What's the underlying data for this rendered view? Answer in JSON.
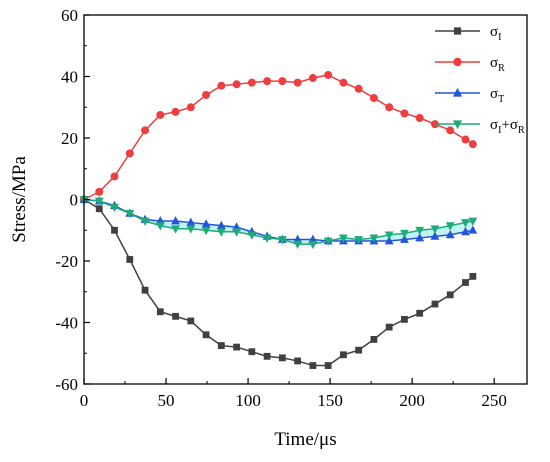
{
  "chart_data": {
    "type": "line",
    "xlabel": "Time/μs",
    "ylabel": "Stress/MPa",
    "xlim": [
      0,
      270
    ],
    "ylim": [
      -60,
      60
    ],
    "xticks": [
      0,
      50,
      100,
      150,
      200,
      250
    ],
    "yticks": [
      -60,
      -40,
      -20,
      0,
      20,
      40,
      60
    ],
    "grid": false,
    "legend_position": "top-right",
    "x": [
      0,
      9.3,
      18.6,
      27.9,
      37.2,
      46.5,
      55.8,
      65.1,
      74.4,
      83.7,
      93,
      102.3,
      111.6,
      120.9,
      130.2,
      139.5,
      148.8,
      158.1,
      167.4,
      176.7,
      186,
      195.3,
      204.6,
      213.9,
      223.2,
      232.5,
      237
    ],
    "series": [
      {
        "name": "σI",
        "base": "σ",
        "sub": "I",
        "color": "#404040",
        "marker": "square",
        "values": [
          0,
          -3,
          -10,
          -19.5,
          -29.5,
          -36.5,
          -38,
          -39.5,
          -44,
          -47.5,
          -48,
          -49.5,
          -51,
          -51.5,
          -52.5,
          -54,
          -54,
          -50.5,
          -49,
          -45.5,
          -41.5,
          -39,
          -37,
          -34,
          -31,
          -27,
          -25
        ]
      },
      {
        "name": "σR",
        "base": "σ",
        "sub": "R",
        "color": "#ee3e3e",
        "marker": "circle",
        "values": [
          0,
          2.5,
          7.5,
          15,
          22.5,
          27.5,
          28.5,
          30,
          34,
          37,
          37.5,
          38,
          38.5,
          38.5,
          38,
          39.5,
          40.5,
          38,
          36,
          33,
          30,
          28,
          26.5,
          24.5,
          22.5,
          19.5,
          18
        ]
      },
      {
        "name": "σT",
        "base": "σ",
        "sub": "T",
        "color": "#2255dd",
        "marker": "triangle-up",
        "values": [
          0,
          -0.5,
          -2,
          -4.5,
          -6.5,
          -7,
          -7,
          -7.5,
          -8,
          -8.5,
          -9,
          -10.5,
          -12,
          -13,
          -13,
          -13,
          -13.5,
          -13.5,
          -13.5,
          -13.5,
          -13.5,
          -13,
          -12.5,
          -12,
          -11.5,
          -10.5,
          -10
        ]
      },
      {
        "name": "σI+σR",
        "base": "σ",
        "sub": "I",
        "mid": "+σ",
        "sub2": "R",
        "color": "#1faa7a",
        "marker": "triangle-down",
        "values": [
          0,
          -0.5,
          -2.5,
          -4.5,
          -7,
          -8.5,
          -9.5,
          -9.5,
          -10,
          -10.5,
          -10.5,
          -11.5,
          -12.5,
          -13,
          -14.5,
          -14.5,
          -13.5,
          -12.5,
          -13,
          -12.5,
          -11.5,
          -11,
          -10,
          -9.5,
          -8.5,
          -7.5,
          -7
        ]
      }
    ],
    "band_color": "#a8ecec"
  }
}
